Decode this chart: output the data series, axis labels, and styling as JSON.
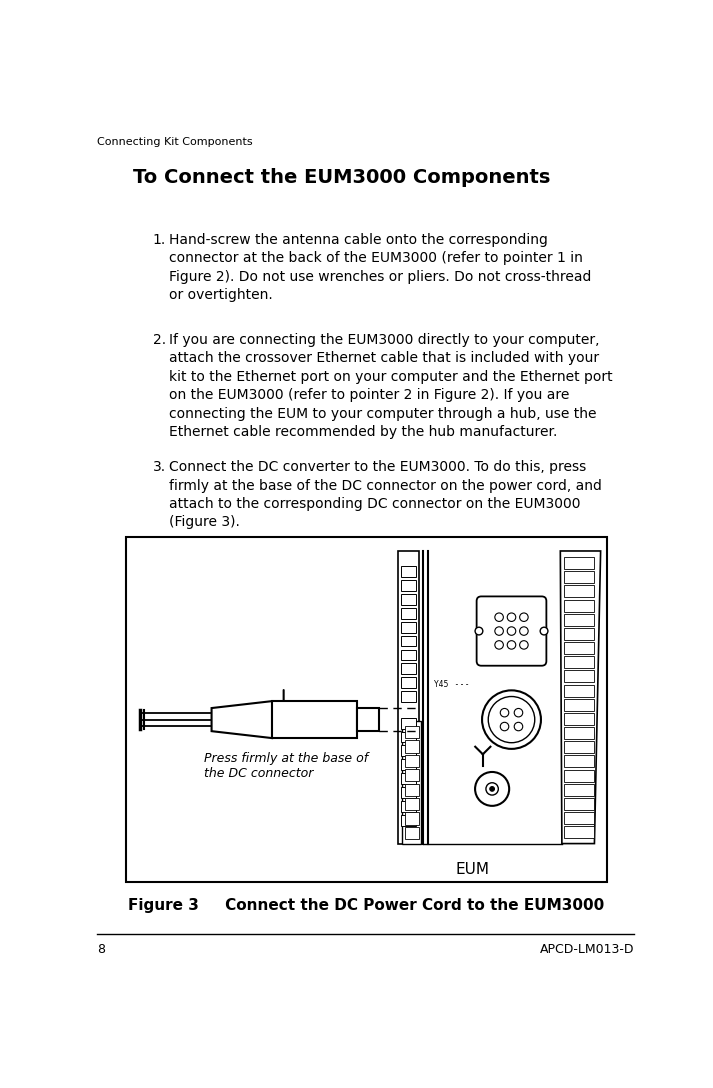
{
  "page_header": "Connecting Kit Components",
  "page_number": "8",
  "page_code": "APCD-LM013-D",
  "section_title": "To Connect the EUM3000 Components",
  "items": [
    {
      "number": "1.",
      "text": "Hand-screw the antenna cable onto the corresponding\nconnector at the back of the EUM3000 (refer to pointer 1 in\nFigure 2). Do not use wrenches or pliers. Do not cross-thread\nor overtighten."
    },
    {
      "number": "2.",
      "text": "If you are connecting the EUM3000 directly to your computer,\nattach the crossover Ethernet cable that is included with your\nkit to the Ethernet port on your computer and the Ethernet port\non the EUM3000 (refer to pointer 2 in Figure 2). If you are\nconnecting the EUM to your computer through a hub, use the\nEthernet cable recommended by the hub manufacturer."
    },
    {
      "number": "3.",
      "text": "Connect the DC converter to the EUM3000. To do this, press\nfirmly at the base of the DC connector on the power cord, and\nattach to the corresponding DC connector on the EUM3000\n(Figure 3)."
    }
  ],
  "figure_caption": "Figure 3     Connect the DC Power Cord to the EUM3000",
  "figure_label": "EUM",
  "annotation_text": "Press firmly at the base of\nthe DC connector",
  "bg_color": "#ffffff",
  "text_color": "#000000"
}
